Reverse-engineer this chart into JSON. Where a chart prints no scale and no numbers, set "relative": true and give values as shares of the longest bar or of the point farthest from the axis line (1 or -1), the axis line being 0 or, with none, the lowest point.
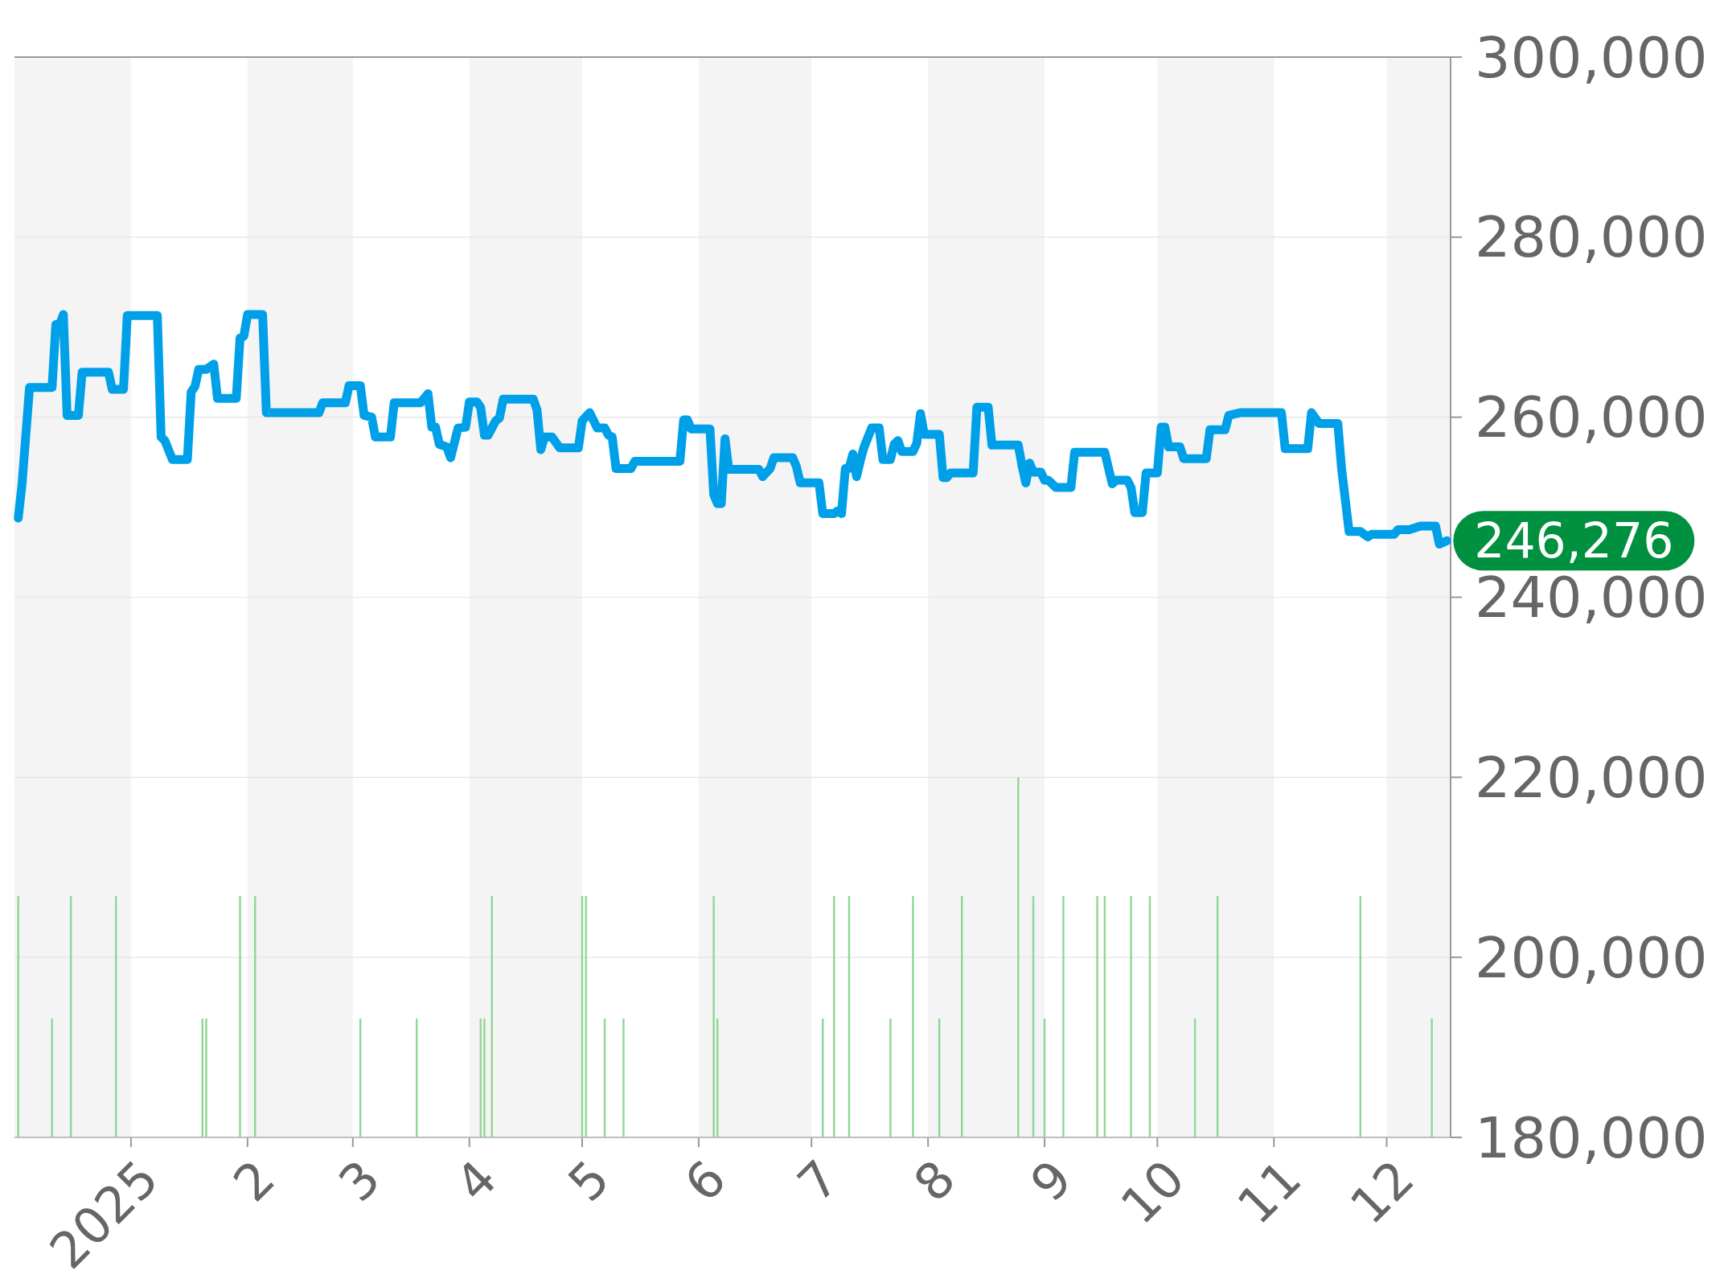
{
  "chart_data": [
    {
      "type": "line",
      "xlim": [
        "2024-12-01",
        "2025-12-18"
      ],
      "xticks": [
        {
          "value": "2025-01-01",
          "label": "2025"
        },
        {
          "value": "2025-02-01",
          "label": "2"
        },
        {
          "value": "2025-03-01",
          "label": "3"
        },
        {
          "value": "2025-04-01",
          "label": "4"
        },
        {
          "value": "2025-05-01",
          "label": "5"
        },
        {
          "value": "2025-06-01",
          "label": "6"
        },
        {
          "value": "2025-07-01",
          "label": "7"
        },
        {
          "value": "2025-08-01",
          "label": "8"
        },
        {
          "value": "2025-09-01",
          "label": "9"
        },
        {
          "value": "2025-10-01",
          "label": "10"
        },
        {
          "value": "2025-11-01",
          "label": "11"
        },
        {
          "value": "2025-12-01",
          "label": "12"
        }
      ],
      "ylim": [
        180000,
        300000
      ],
      "yticks": [
        {
          "value": 180000,
          "label": "180,000"
        },
        {
          "value": 200000,
          "label": "200,000"
        },
        {
          "value": 220000,
          "label": "220,000"
        },
        {
          "value": 240000,
          "label": "240,000"
        },
        {
          "value": 260000,
          "label": "260,000"
        },
        {
          "value": 280000,
          "label": "280,000"
        },
        {
          "value": 300000,
          "label": "300,000"
        }
      ],
      "grid": "y",
      "bands": [
        {
          "axis": "x",
          "from": "2024-12-01",
          "to": "2025-01-01",
          "color": "#f4f4f4"
        },
        {
          "axis": "x",
          "from": "2025-02-01",
          "to": "2025-03-01",
          "color": "#f4f4f4"
        },
        {
          "axis": "x",
          "from": "2025-04-01",
          "to": "2025-05-01",
          "color": "#f4f4f4"
        },
        {
          "axis": "x",
          "from": "2025-06-01",
          "to": "2025-07-01",
          "color": "#f4f4f4"
        },
        {
          "axis": "x",
          "from": "2025-08-01",
          "to": "2025-09-01",
          "color": "#f4f4f4"
        },
        {
          "axis": "x",
          "from": "2025-10-01",
          "to": "2025-11-01",
          "color": "#f4f4f4"
        },
        {
          "axis": "x",
          "from": "2025-12-01",
          "to": "2025-12-18",
          "color": "#f4f4f4"
        }
      ],
      "annotations": [
        {
          "text": "246,276",
          "x": "2025-12-17",
          "y": 246276
        }
      ],
      "series": [
        {
          "color": "#00a0e9",
          "x": [
            "2024-12-02",
            "2024-12-03",
            "2024-12-05",
            "2024-12-11",
            "2024-12-12",
            "2024-12-13",
            "2024-12-14",
            "2024-12-15",
            "2024-12-18",
            "2024-12-19",
            "2024-12-26",
            "2024-12-27",
            "2024-12-30",
            "2024-12-31",
            "2025-01-08",
            "2025-01-09",
            "2025-01-10",
            "2025-01-12",
            "2025-01-16",
            "2025-01-17",
            "2025-01-18",
            "2025-01-19",
            "2025-01-21",
            "2025-01-23",
            "2025-01-24",
            "2025-01-29",
            "2025-01-30",
            "2025-01-31",
            "2025-02-01",
            "2025-02-05",
            "2025-02-06",
            "2025-02-20",
            "2025-02-21",
            "2025-02-27",
            "2025-02-28",
            "2025-03-03",
            "2025-03-04",
            "2025-03-06",
            "2025-03-07",
            "2025-03-11",
            "2025-03-12",
            "2025-03-19",
            "2025-03-21",
            "2025-03-22",
            "2025-03-23",
            "2025-03-24",
            "2025-03-26",
            "2025-03-27",
            "2025-03-29",
            "2025-03-31",
            "2025-04-01",
            "2025-04-03",
            "2025-04-04",
            "2025-04-05",
            "2025-04-06",
            "2025-04-08",
            "2025-04-09",
            "2025-04-10",
            "2025-04-18",
            "2025-04-19",
            "2025-04-20",
            "2025-04-21",
            "2025-04-23",
            "2025-04-25",
            "2025-04-30",
            "2025-05-01",
            "2025-05-03",
            "2025-05-05",
            "2025-05-07",
            "2025-05-08",
            "2025-05-09",
            "2025-05-10",
            "2025-05-14",
            "2025-05-15",
            "2025-05-27",
            "2025-05-28",
            "2025-05-29",
            "2025-05-30",
            "2025-06-04",
            "2025-06-05",
            "2025-06-06",
            "2025-06-07",
            "2025-06-08",
            "2025-06-09",
            "2025-06-17",
            "2025-06-18",
            "2025-06-20",
            "2025-06-21",
            "2025-06-26",
            "2025-06-27",
            "2025-06-28",
            "2025-07-03",
            "2025-07-04",
            "2025-07-07",
            "2025-07-08",
            "2025-07-09",
            "2025-07-10",
            "2025-07-11",
            "2025-07-12",
            "2025-07-13",
            "2025-07-14",
            "2025-07-15",
            "2025-07-17",
            "2025-07-19",
            "2025-07-20",
            "2025-07-22",
            "2025-07-23",
            "2025-07-24",
            "2025-07-25",
            "2025-07-28",
            "2025-07-29",
            "2025-07-30",
            "2025-07-31",
            "2025-08-04",
            "2025-08-05",
            "2025-08-06",
            "2025-08-07",
            "2025-08-13",
            "2025-08-14",
            "2025-08-17",
            "2025-08-18",
            "2025-08-25",
            "2025-08-26",
            "2025-08-27",
            "2025-08-28",
            "2025-08-29",
            "2025-08-31",
            "2025-09-01",
            "2025-09-02",
            "2025-09-04",
            "2025-09-08",
            "2025-09-09",
            "2025-09-17",
            "2025-09-19",
            "2025-09-20",
            "2025-09-23",
            "2025-09-24",
            "2025-09-25",
            "2025-09-27",
            "2025-09-28",
            "2025-10-01",
            "2025-10-02",
            "2025-10-03",
            "2025-10-04",
            "2025-10-07",
            "2025-10-08",
            "2025-10-14",
            "2025-10-15",
            "2025-10-19",
            "2025-10-20",
            "2025-10-23",
            "2025-11-03",
            "2025-11-04",
            "2025-11-10",
            "2025-11-11",
            "2025-11-13",
            "2025-11-18",
            "2025-11-19",
            "2025-11-21",
            "2025-11-24",
            "2025-11-26",
            "2025-11-27",
            "2025-12-03",
            "2025-12-04",
            "2025-12-07",
            "2025-12-10",
            "2025-12-14",
            "2025-12-15",
            "2025-12-17"
          ],
          "values": [
            248800,
            252500,
            263300,
            263300,
            270300,
            270300,
            271400,
            260200,
            260200,
            265000,
            265000,
            263100,
            263100,
            271300,
            271300,
            257800,
            257400,
            255300,
            255300,
            262800,
            263400,
            265300,
            265300,
            265900,
            262100,
            262100,
            268800,
            269000,
            271400,
            271400,
            260500,
            260500,
            261600,
            261600,
            263500,
            263500,
            260200,
            260000,
            257800,
            257800,
            261600,
            261600,
            262600,
            258900,
            258900,
            257000,
            256700,
            255500,
            258800,
            258900,
            261700,
            261700,
            261100,
            258000,
            258000,
            259600,
            259900,
            262000,
            262000,
            260800,
            256400,
            257800,
            257800,
            256600,
            256600,
            259600,
            260500,
            258800,
            258800,
            258000,
            257800,
            254300,
            254300,
            255100,
            255100,
            259700,
            259700,
            258700,
            258700,
            251400,
            250400,
            250400,
            257600,
            254200,
            254200,
            253400,
            254300,
            255500,
            255500,
            254500,
            252700,
            252700,
            249300,
            249300,
            249600,
            249300,
            254300,
            254300,
            255900,
            253400,
            255200,
            256700,
            258800,
            258800,
            255300,
            255300,
            257000,
            257400,
            256200,
            256200,
            257100,
            260400,
            258100,
            258100,
            253300,
            253300,
            253800,
            253800,
            261100,
            261100,
            256900,
            256900,
            254600,
            252700,
            254900,
            253900,
            253900,
            253000,
            253000,
            252200,
            252200,
            256100,
            256100,
            252600,
            253000,
            253000,
            252200,
            249400,
            249400,
            253800,
            253800,
            258900,
            258900,
            256700,
            256700,
            255400,
            255400,
            258600,
            258600,
            260200,
            260500,
            260500,
            256500,
            256500,
            260500,
            259300,
            259300,
            254300,
            247300,
            247300,
            246700,
            247000,
            247000,
            247500,
            247500,
            247900,
            247900,
            245900,
            246276
          ]
        }
      ]
    },
    {
      "type": "bar",
      "relative": true,
      "xlim": [
        "2024-12-01",
        "2025-12-18"
      ],
      "x": [
        "2024-12-02",
        "2024-12-11",
        "2024-12-16",
        "2024-12-28",
        "2025-01-20",
        "2025-01-21",
        "2025-01-30",
        "2025-02-03",
        "2025-03-03",
        "2025-03-18",
        "2025-04-04",
        "2025-04-05",
        "2025-04-07",
        "2025-05-01",
        "2025-05-02",
        "2025-05-07",
        "2025-05-12",
        "2025-06-05",
        "2025-06-06",
        "2025-07-04",
        "2025-07-07",
        "2025-07-11",
        "2025-07-22",
        "2025-07-28",
        "2025-08-04",
        "2025-08-10",
        "2025-08-25",
        "2025-08-29",
        "2025-09-01",
        "2025-09-06",
        "2025-09-15",
        "2025-09-17",
        "2025-09-24",
        "2025-09-29",
        "2025-10-11",
        "2025-10-17",
        "2025-11-24",
        "2025-12-13"
      ],
      "values": [
        0.67,
        0.33,
        0.67,
        0.67,
        0.33,
        0.33,
        0.67,
        0.67,
        0.33,
        0.33,
        0.33,
        0.33,
        0.67,
        0.67,
        0.67,
        0.33,
        0.33,
        0.67,
        0.33,
        0.33,
        0.67,
        0.67,
        0.33,
        0.67,
        0.33,
        0.67,
        1,
        0.67,
        0.33,
        0.67,
        0.67,
        0.67,
        0.67,
        0.67,
        0.33,
        0.67,
        0.67,
        0.33
      ],
      "color": "#8fd694"
    }
  ]
}
